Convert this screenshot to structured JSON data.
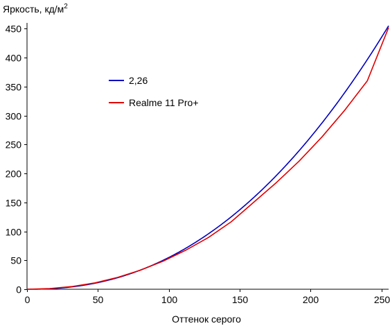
{
  "chart_data": {
    "type": "line",
    "title": "",
    "ylabel": "Яркость, кд/м",
    "ylabel_superscript": "2",
    "xlabel": "Оттенок серого",
    "xlim": [
      0,
      255
    ],
    "ylim": [
      0,
      460
    ],
    "xticks": [
      0,
      50,
      100,
      150,
      200,
      250
    ],
    "yticks": [
      0,
      50,
      100,
      150,
      200,
      250,
      300,
      350,
      400,
      450
    ],
    "grid": false,
    "legend_placement": "upper-left-inside",
    "series": [
      {
        "name": "2,26",
        "color": "#0000c0",
        "gamma": 2.26,
        "max_value": 455,
        "x": [
          0,
          16,
          32,
          48,
          64,
          80,
          96,
          112,
          128,
          144,
          160,
          176,
          192,
          208,
          224,
          240,
          255
        ],
        "y": [
          0,
          0.9,
          4.4,
          10.8,
          20.4,
          33.1,
          49.2,
          68.8,
          91.9,
          118.7,
          149.3,
          183.6,
          222,
          264.3,
          310.7,
          361.2,
          455
        ]
      },
      {
        "name": "Realme 11 Pro+",
        "color": "#e00000",
        "x": [
          0,
          16,
          32,
          48,
          64,
          80,
          96,
          112,
          128,
          144,
          160,
          176,
          192,
          208,
          224,
          240,
          255
        ],
        "y": [
          0,
          1.2,
          4.8,
          11.0,
          20.5,
          33.0,
          48.5,
          67.5,
          89.5,
          116.5,
          150.5,
          184.5,
          221.5,
          263.0,
          309.0,
          360.0,
          452
        ]
      }
    ]
  }
}
